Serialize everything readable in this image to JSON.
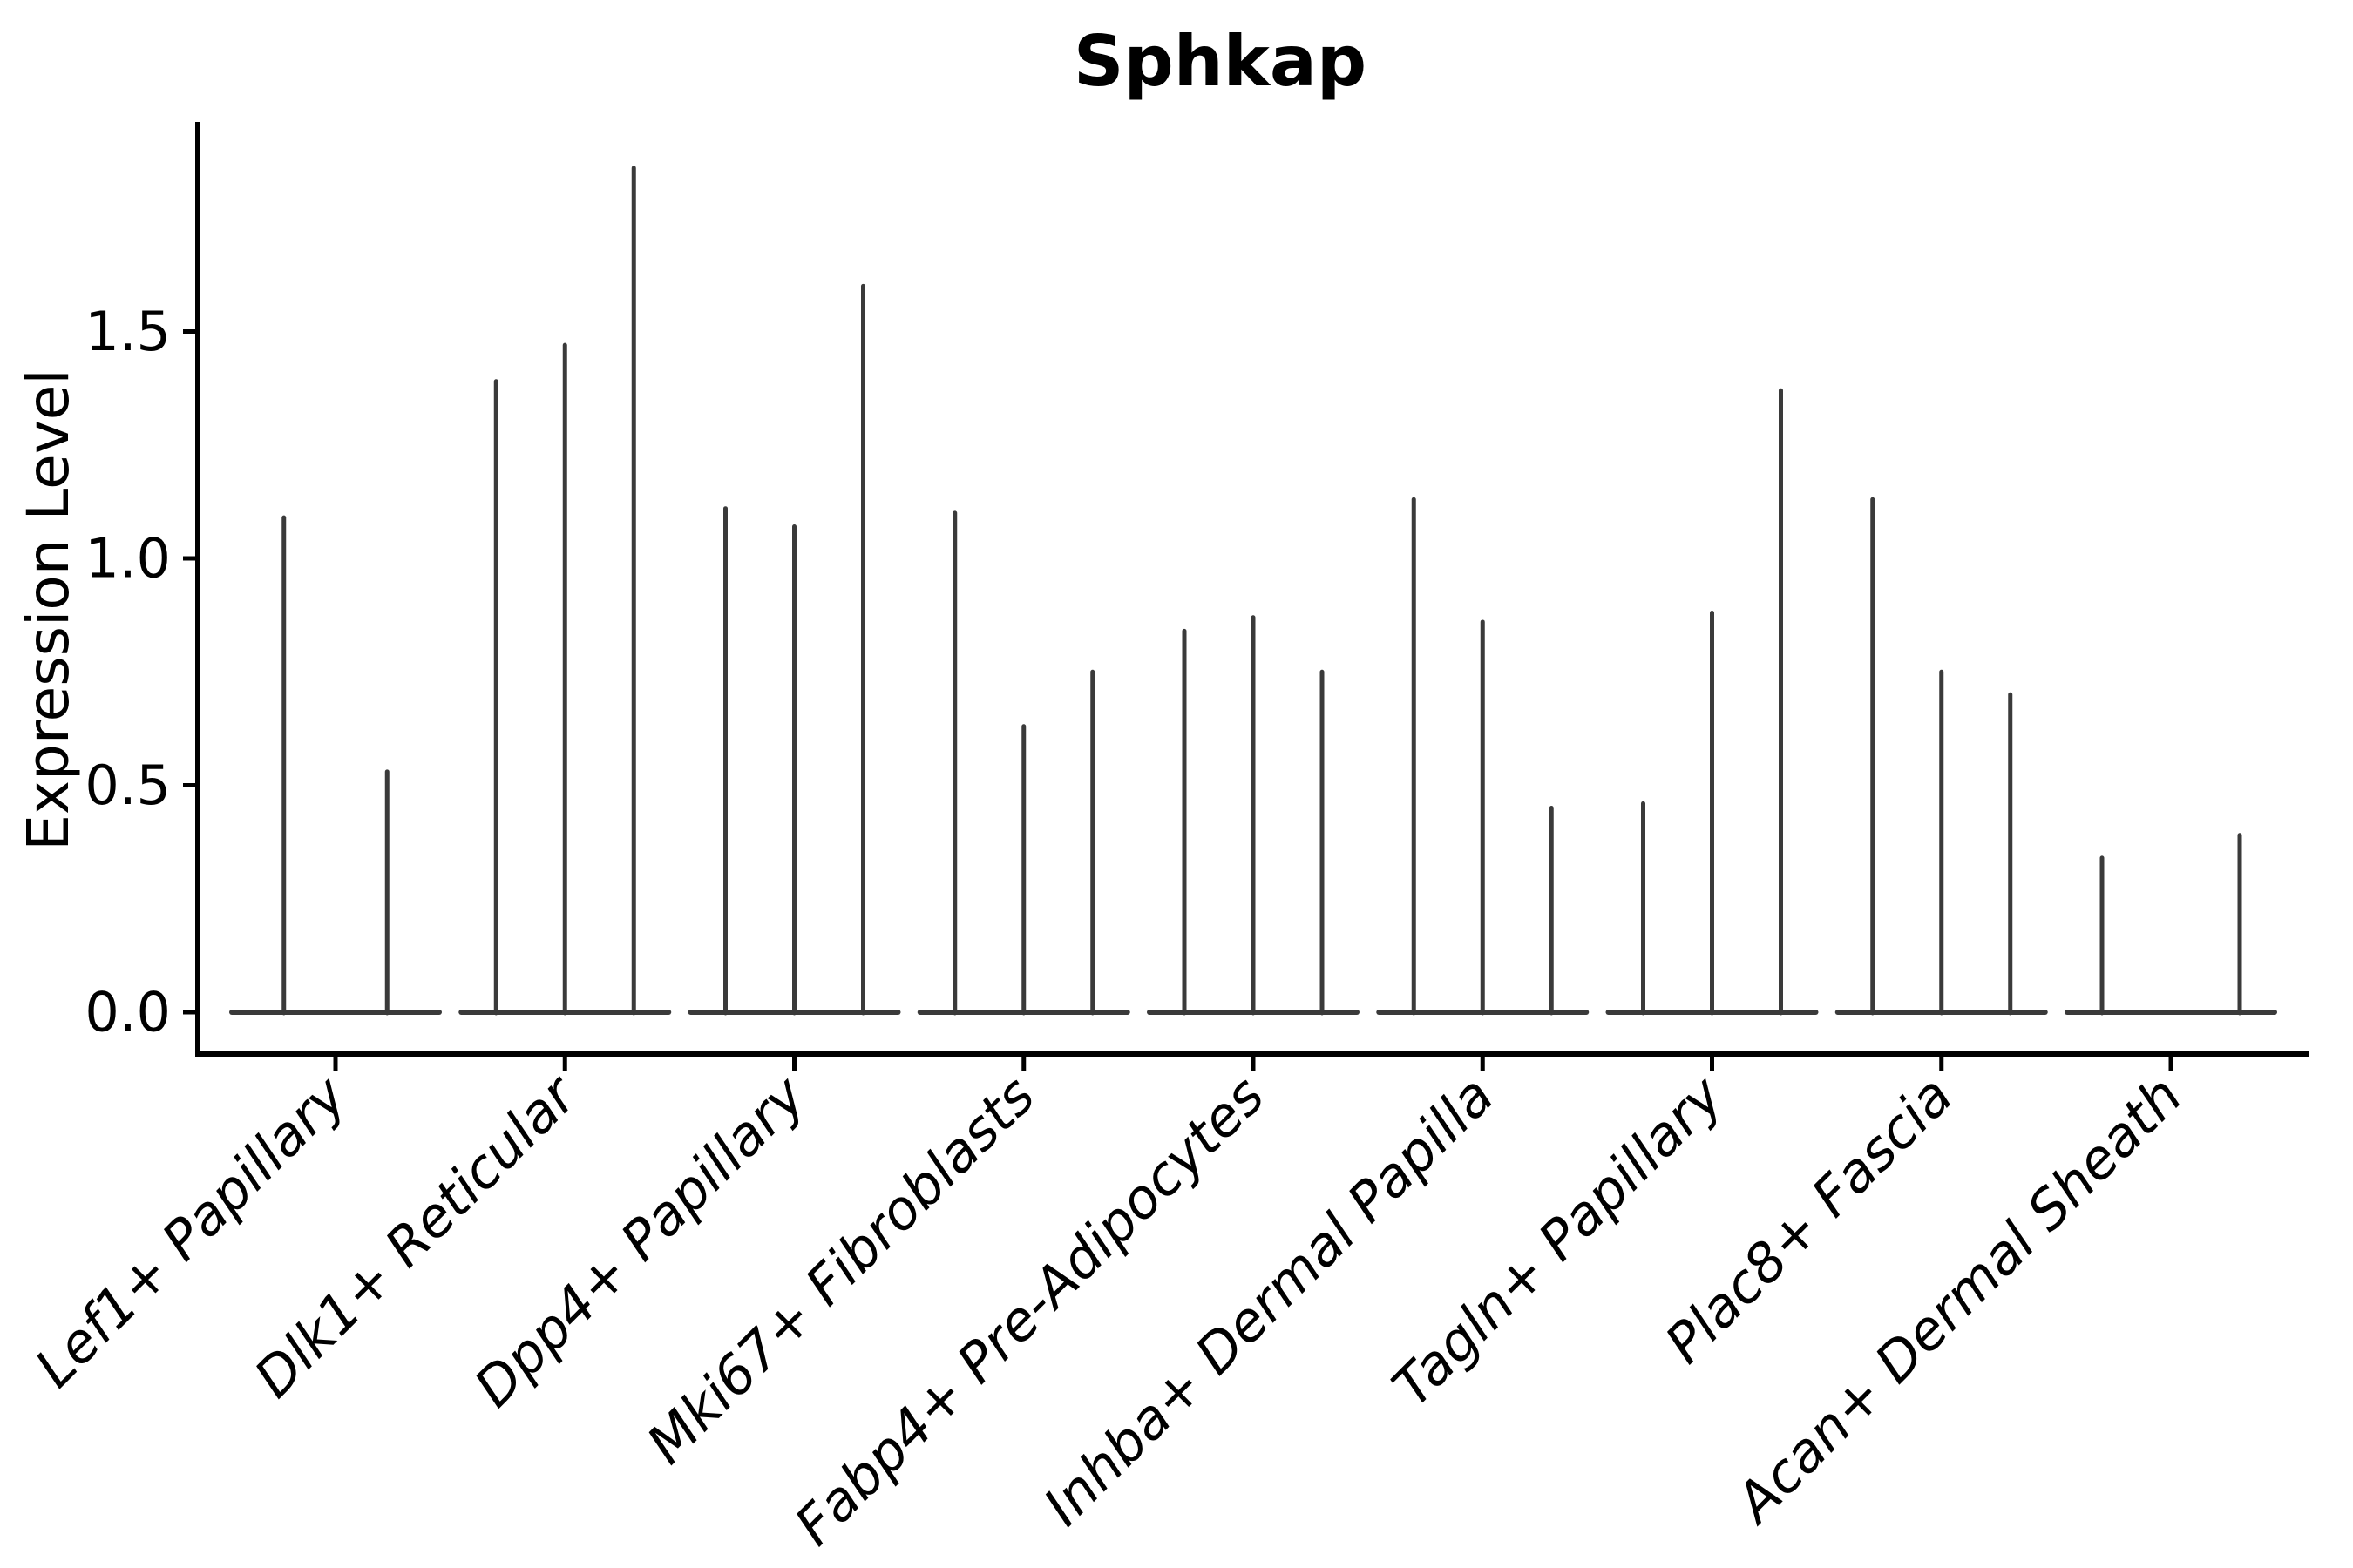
{
  "figure": {
    "title": "Sphkap",
    "ylabel": "Expression Level"
  },
  "chart_data": {
    "type": "violin",
    "title": "Sphkap",
    "xlabel": "",
    "ylabel": "Expression Level",
    "ylim": [
      -0.09,
      1.96
    ],
    "yticks": [
      0.0,
      0.5,
      1.0,
      1.5
    ],
    "ytick_labels": [
      "0.0",
      "0.5",
      "1.0",
      "1.5"
    ],
    "grid": false,
    "legend": "none",
    "categories": [
      "Lef1+ Papillary",
      "Dlk1+ Reticular",
      "Dpp4+ Papillary",
      "Mki67+ Fibroblasts",
      "Fabp4+ Pre-Adipocytes",
      "Inhba+ Dermal Papilla",
      "Tagln+ Papillary",
      "Plac8+ Fascia",
      "Acan+ Dermal Sheath"
    ],
    "groups": [
      {
        "label": "Lef1+ Papillary",
        "violin_max_values": [
          1.09,
          0.53
        ]
      },
      {
        "label": "Dlk1+ Reticular",
        "violin_max_values": [
          1.39,
          1.47,
          1.86
        ]
      },
      {
        "label": "Dpp4+ Papillary",
        "violin_max_values": [
          1.11,
          1.07,
          1.6
        ]
      },
      {
        "label": "Mki67+ Fibroblasts",
        "violin_max_values": [
          1.1,
          0.63,
          0.75
        ]
      },
      {
        "label": "Fabp4+ Pre-Adipocytes",
        "violin_max_values": [
          0.84,
          0.87,
          0.75
        ]
      },
      {
        "label": "Inhba+ Dermal Papilla",
        "violin_max_values": [
          1.13,
          0.86,
          0.45
        ]
      },
      {
        "label": "Tagln+ Papillary",
        "violin_max_values": [
          0.46,
          0.88,
          1.37
        ]
      },
      {
        "label": "Plac8+ Fascia",
        "violin_max_values": [
          1.13,
          0.75,
          0.7
        ]
      },
      {
        "label": "Acan+ Dermal Sheath",
        "violin_max_values": [
          0.34,
          0.0,
          0.39
        ]
      }
    ],
    "colors": {
      "violin": "#3a3a3a",
      "axis": "#000000",
      "text": "#000000",
      "background": "#ffffff"
    }
  }
}
